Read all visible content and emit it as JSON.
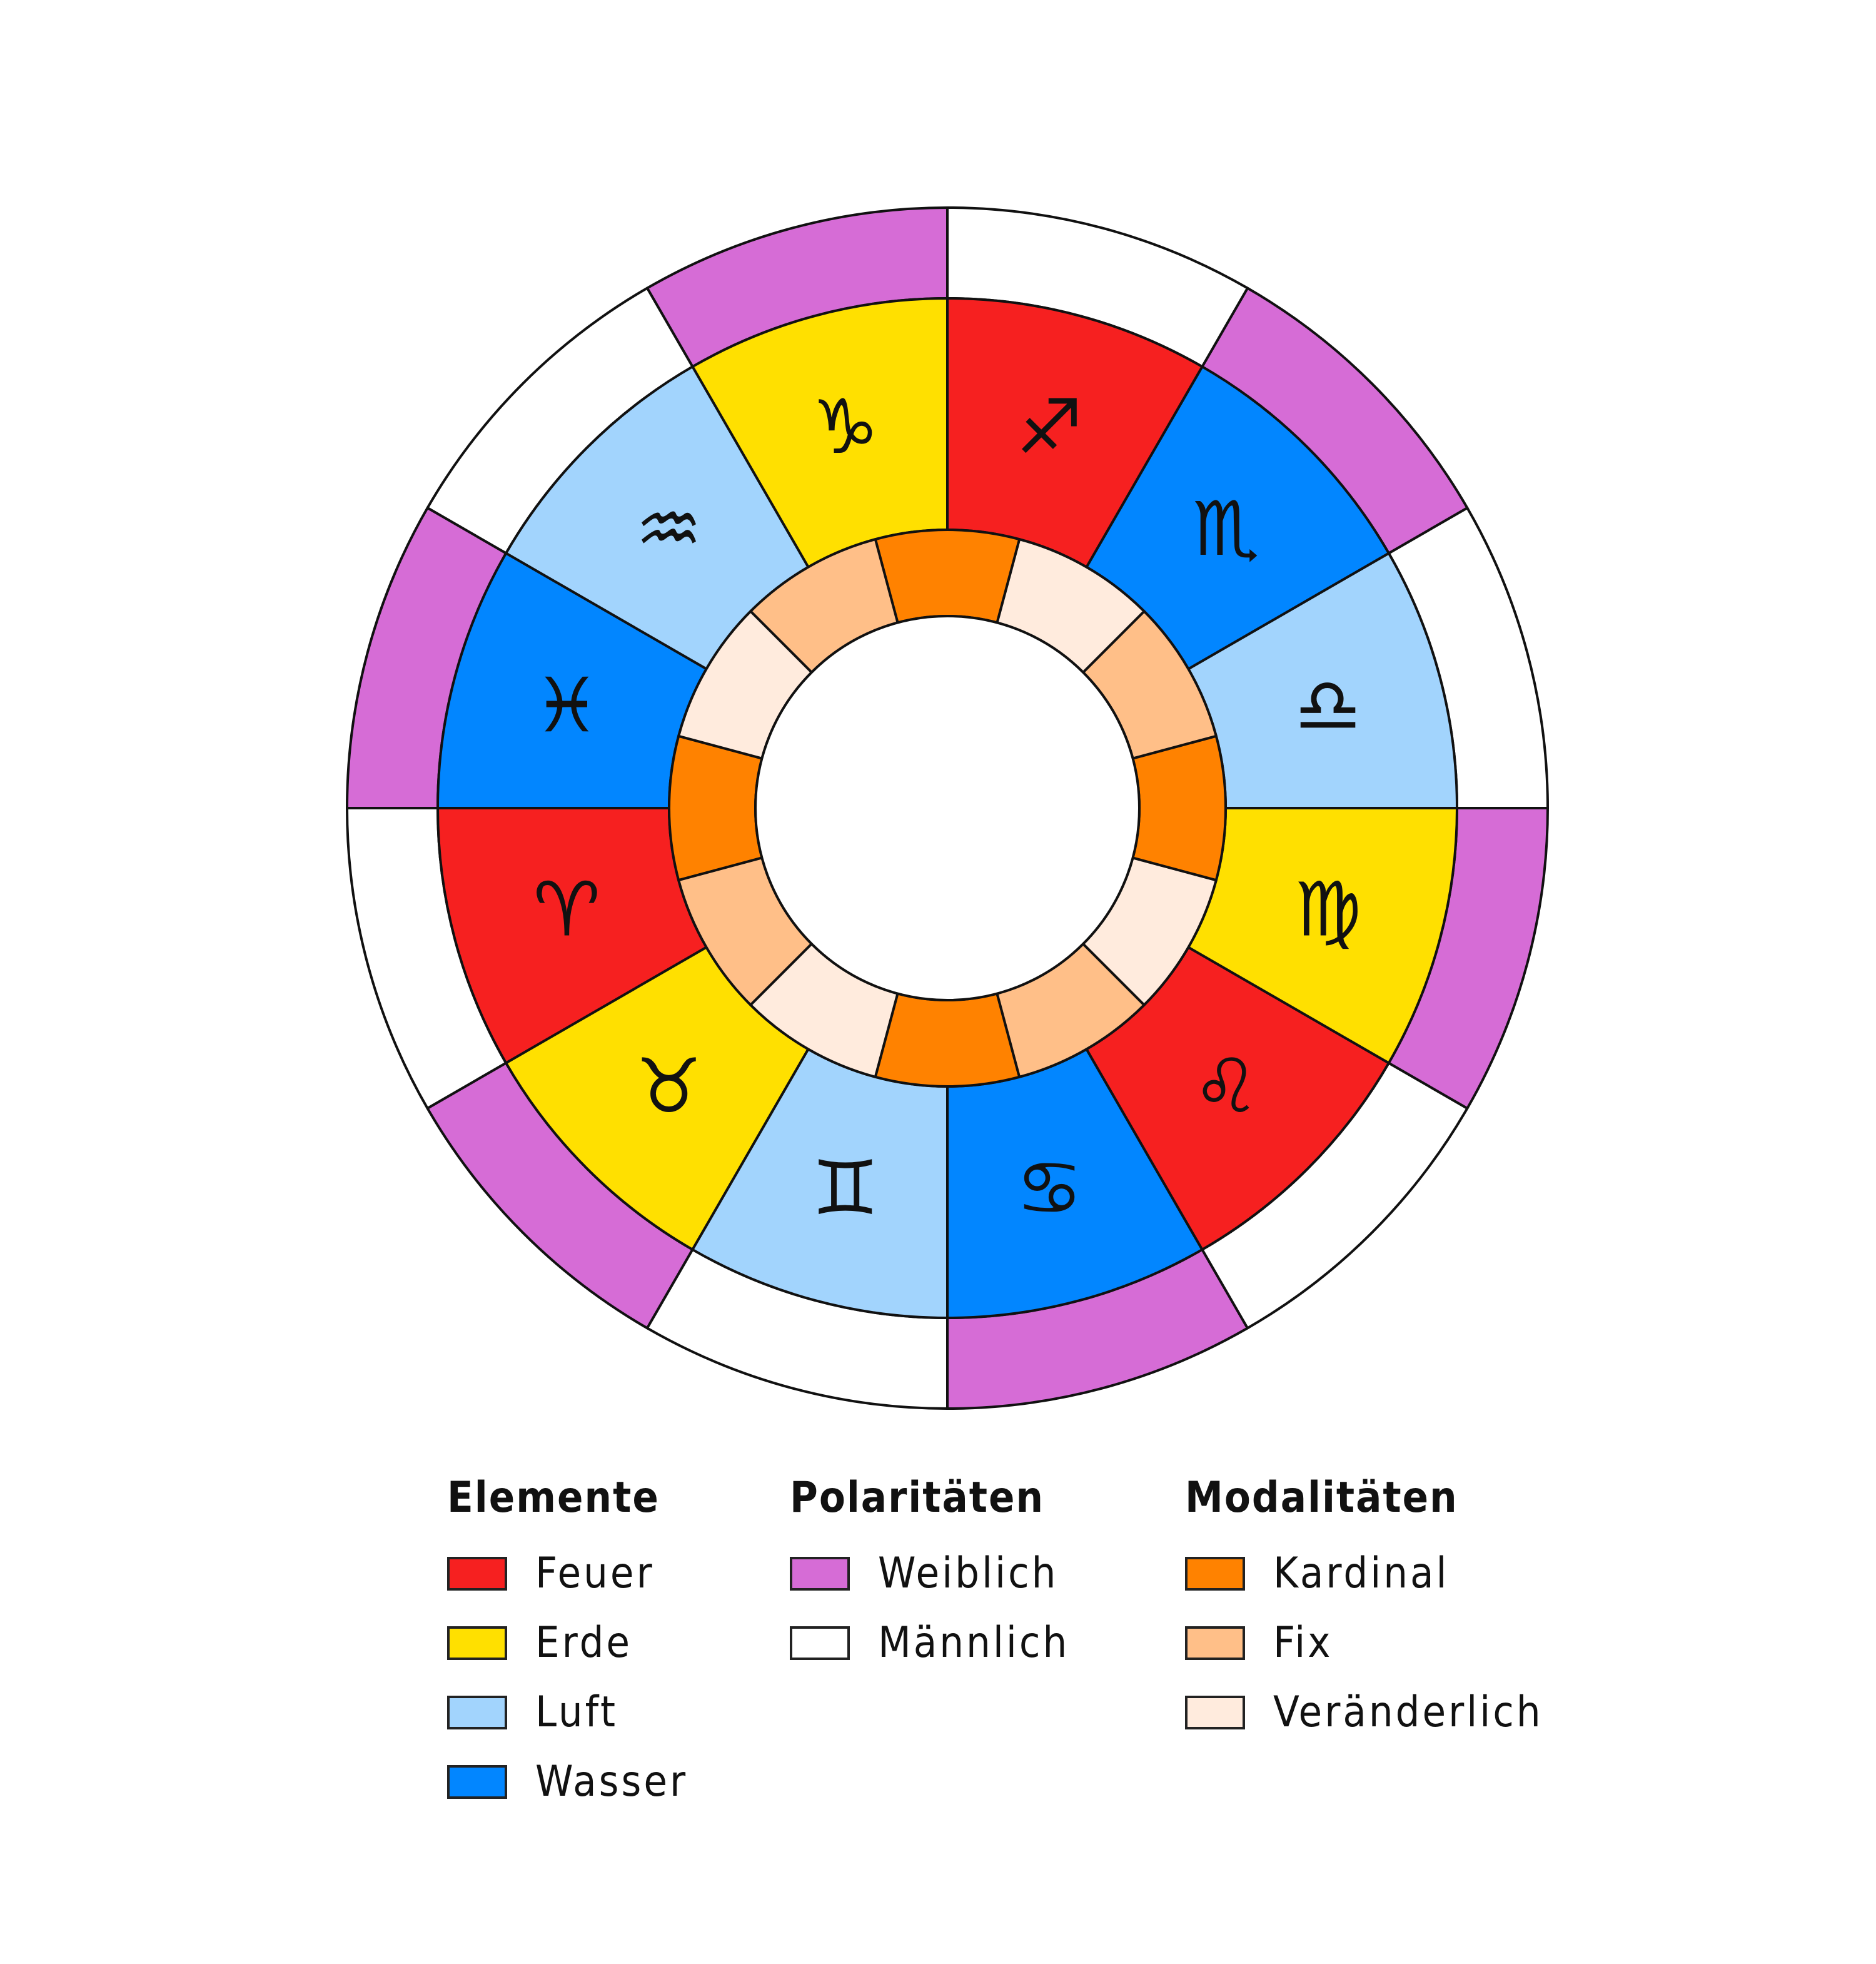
{
  "colors": {
    "feuer": "#F62020",
    "erde": "#FFE000",
    "luft": "#A2D4FD",
    "wasser": "#0286FF",
    "weiblich": "#D66CD6",
    "maennlich": "#FFFFFF",
    "kardinal": "#FF8200",
    "fix": "#FFBF88",
    "veraenderlich": "#FFEBDD"
  },
  "signs": [
    {
      "symbol": "♈",
      "name": "aries",
      "element": "feuer",
      "polarity": "maennlich",
      "modality": "kardinal"
    },
    {
      "symbol": "♉",
      "name": "taurus",
      "element": "erde",
      "polarity": "weiblich",
      "modality": "fix"
    },
    {
      "symbol": "♊",
      "name": "gemini",
      "element": "luft",
      "polarity": "maennlich",
      "modality": "veraenderlich"
    },
    {
      "symbol": "♋",
      "name": "cancer",
      "element": "wasser",
      "polarity": "weiblich",
      "modality": "kardinal"
    },
    {
      "symbol": "♌",
      "name": "leo",
      "element": "feuer",
      "polarity": "maennlich",
      "modality": "fix"
    },
    {
      "symbol": "♍",
      "name": "virgo",
      "element": "erde",
      "polarity": "weiblich",
      "modality": "veraenderlich"
    },
    {
      "symbol": "♎",
      "name": "libra",
      "element": "luft",
      "polarity": "maennlich",
      "modality": "kardinal"
    },
    {
      "symbol": "♏",
      "name": "scorpio",
      "element": "wasser",
      "polarity": "weiblich",
      "modality": "fix"
    },
    {
      "symbol": "♐",
      "name": "sagittarius",
      "element": "feuer",
      "polarity": "maennlich",
      "modality": "veraenderlich"
    },
    {
      "symbol": "♑",
      "name": "capricorn",
      "element": "erde",
      "polarity": "weiblich",
      "modality": "kardinal"
    },
    {
      "symbol": "♒",
      "name": "aquarius",
      "element": "luft",
      "polarity": "maennlich",
      "modality": "fix"
    },
    {
      "symbol": "♓",
      "name": "pisces",
      "element": "wasser",
      "polarity": "weiblich",
      "modality": "veraenderlich"
    }
  ],
  "legend": {
    "elemente": {
      "title": "Elemente",
      "items": [
        {
          "label": "Feuer",
          "key": "feuer"
        },
        {
          "label": "Erde",
          "key": "erde"
        },
        {
          "label": "Luft",
          "key": "luft"
        },
        {
          "label": "Wasser",
          "key": "wasser"
        }
      ]
    },
    "polaritaeten": {
      "title": "Polaritäten",
      "items": [
        {
          "label": "Weiblich",
          "key": "weiblich"
        },
        {
          "label": "Männlich",
          "key": "maennlich"
        }
      ]
    },
    "modalitaeten": {
      "title": "Modalitäten",
      "items": [
        {
          "label": "Kardinal",
          "key": "kardinal"
        },
        {
          "label": "Fix",
          "key": "fix"
        },
        {
          "label": "Veränderlich",
          "key": "veraenderlich"
        }
      ]
    }
  }
}
